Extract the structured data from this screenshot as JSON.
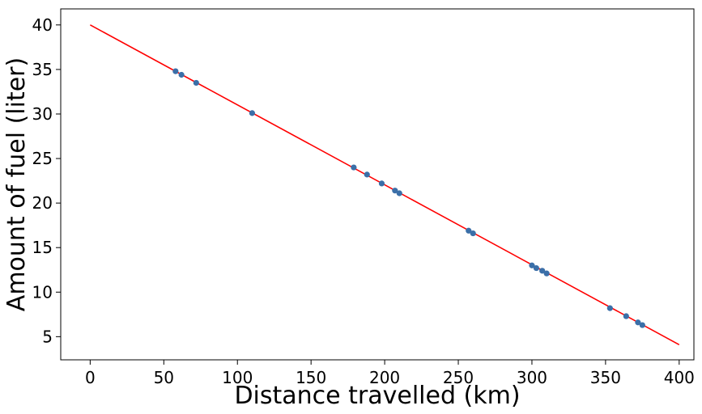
{
  "chart_data": {
    "type": "scatter",
    "xlabel": "Distance travelled (km)",
    "ylabel": "Amount of fuel (liter)",
    "xlim": [
      -20,
      410
    ],
    "ylim": [
      2.4,
      41.8
    ],
    "x_ticks": [
      0,
      50,
      100,
      150,
      200,
      250,
      300,
      350,
      400
    ],
    "y_ticks": [
      5,
      10,
      15,
      20,
      25,
      30,
      35,
      40
    ],
    "grid": false,
    "colors": {
      "points": "#3b6fa8",
      "line": "#ff0000"
    },
    "series": [
      {
        "type": "scatter",
        "x": [
          58,
          62,
          72,
          110,
          179,
          188,
          198,
          207,
          210,
          257,
          260,
          300,
          303,
          307,
          310,
          353,
          364,
          372,
          375
        ],
        "y": [
          34.8,
          34.4,
          33.5,
          30.1,
          24.0,
          23.2,
          22.2,
          21.4,
          21.1,
          16.9,
          16.6,
          13.0,
          12.7,
          12.4,
          12.1,
          8.2,
          7.3,
          6.6,
          6.3
        ]
      },
      {
        "type": "line",
        "x": [
          0,
          400
        ],
        "y": [
          40.0,
          4.1
        ]
      }
    ]
  }
}
